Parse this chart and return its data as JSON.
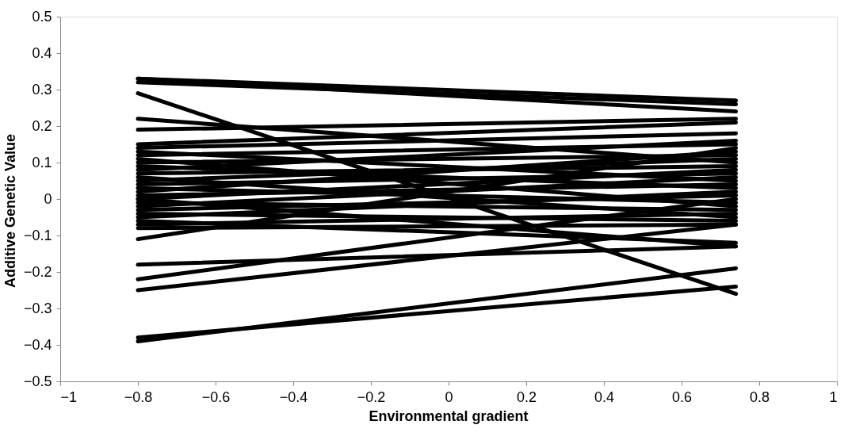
{
  "chart_data": {
    "type": "line",
    "xlabel": "Environmental gradient",
    "ylabel": "Additive Genetic Value",
    "x": [
      -0.8,
      0.74
    ],
    "xlim": [
      -1,
      1
    ],
    "xticks": [
      -1,
      -0.8,
      -0.6,
      -0.4,
      -0.2,
      0,
      0.2,
      0.4,
      0.6,
      0.8,
      1
    ],
    "ylim": [
      -0.5,
      0.5
    ],
    "yticks": [
      -0.5,
      -0.4,
      -0.3,
      -0.2,
      -0.1,
      0,
      0.1,
      0.2,
      0.3,
      0.4,
      0.5
    ],
    "grid": false,
    "legend": false,
    "marker": "none",
    "line_style": "solid",
    "series": [
      {
        "color": "#000000",
        "values": [
          0.33,
          0.27
        ]
      },
      {
        "color": "#000000",
        "values": [
          0.33,
          0.24
        ]
      },
      {
        "color": "#000000",
        "values": [
          0.32,
          0.26
        ]
      },
      {
        "color": "#000000",
        "values": [
          0.29,
          -0.26
        ]
      },
      {
        "color": "#000000",
        "values": [
          0.22,
          0.1
        ]
      },
      {
        "color": "#000000",
        "values": [
          0.19,
          0.22
        ]
      },
      {
        "color": "#000000",
        "values": [
          0.15,
          0.21
        ]
      },
      {
        "color": "#000000",
        "values": [
          0.14,
          0.18
        ]
      },
      {
        "color": "#000000",
        "values": [
          0.13,
          0.05
        ]
      },
      {
        "color": "#000000",
        "values": [
          0.12,
          0.15
        ]
      },
      {
        "color": "#000000",
        "values": [
          0.11,
          -0.02
        ]
      },
      {
        "color": "#000000",
        "values": [
          0.1,
          0.12
        ]
      },
      {
        "color": "#000000",
        "values": [
          0.09,
          0.03
        ]
      },
      {
        "color": "#000000",
        "values": [
          0.08,
          0.16
        ]
      },
      {
        "color": "#000000",
        "values": [
          0.07,
          0.09
        ]
      },
      {
        "color": "#000000",
        "values": [
          0.06,
          -0.05
        ]
      },
      {
        "color": "#000000",
        "values": [
          0.05,
          0.11
        ]
      },
      {
        "color": "#000000",
        "values": [
          0.04,
          0.07
        ]
      },
      {
        "color": "#000000",
        "values": [
          0.03,
          -0.01
        ]
      },
      {
        "color": "#000000",
        "values": [
          0.02,
          0.13
        ]
      },
      {
        "color": "#000000",
        "values": [
          0.01,
          0.04
        ]
      },
      {
        "color": "#000000",
        "values": [
          0.0,
          0.08
        ]
      },
      {
        "color": "#000000",
        "values": [
          0.0,
          -0.13
        ]
      },
      {
        "color": "#000000",
        "values": [
          -0.01,
          -0.03
        ]
      },
      {
        "color": "#000000",
        "values": [
          -0.02,
          0.06
        ]
      },
      {
        "color": "#000000",
        "values": [
          -0.03,
          0.01
        ]
      },
      {
        "color": "#000000",
        "values": [
          -0.04,
          -0.06
        ]
      },
      {
        "color": "#000000",
        "values": [
          -0.05,
          0.02
        ]
      },
      {
        "color": "#000000",
        "values": [
          -0.06,
          -0.12
        ]
      },
      {
        "color": "#000000",
        "values": [
          -0.07,
          -0.04
        ]
      },
      {
        "color": "#000000",
        "values": [
          -0.08,
          -0.07
        ]
      },
      {
        "color": "#000000",
        "values": [
          -0.11,
          0.14
        ]
      },
      {
        "color": "#000000",
        "values": [
          -0.18,
          -0.13
        ]
      },
      {
        "color": "#000000",
        "values": [
          -0.22,
          0.0
        ]
      },
      {
        "color": "#000000",
        "values": [
          -0.25,
          -0.07
        ]
      },
      {
        "color": "#000000",
        "values": [
          -0.38,
          -0.24
        ]
      },
      {
        "color": "#000000",
        "values": [
          -0.39,
          -0.19
        ]
      }
    ]
  }
}
